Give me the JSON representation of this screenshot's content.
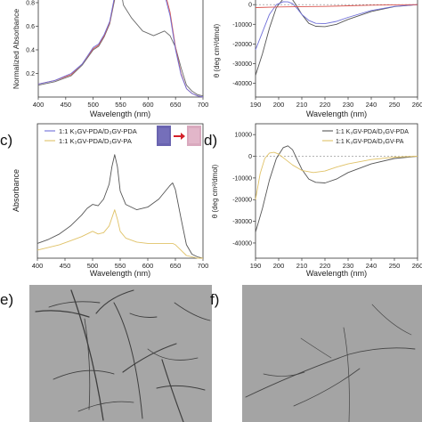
{
  "panel_labels": {
    "c": "c)",
    "d": "d)",
    "e": "e)",
    "f": "f)"
  },
  "chart_data": [
    {
      "id": "a",
      "type": "line",
      "xlabel": "Wavelength (nm)",
      "ylabel": "Normalized Absorbance",
      "xlim": [
        400,
        700
      ],
      "ylim": [
        0,
        0.83
      ],
      "xticks": [
        400,
        450,
        500,
        550,
        600,
        650,
        700
      ],
      "yticks": [
        0.2,
        0.4,
        0.6,
        0.8
      ],
      "ytick_labels": [
        "0.2",
        "0.4",
        "0.6",
        "0.8"
      ],
      "series": [
        {
          "color": "#6a6a6a",
          "x": [
            400,
            430,
            460,
            480,
            500,
            510,
            520,
            530,
            538,
            545,
            550,
            555,
            570,
            590,
            610,
            620,
            630,
            640,
            650,
            660,
            670,
            680,
            690,
            700
          ],
          "y": [
            0.1,
            0.13,
            0.18,
            0.27,
            0.4,
            0.43,
            0.51,
            0.62,
            0.8,
            0.95,
            0.92,
            0.78,
            0.67,
            0.56,
            0.52,
            0.54,
            0.56,
            0.52,
            0.42,
            0.25,
            0.1,
            0.05,
            0.02,
            0.01
          ]
        },
        {
          "color": "#d9544f",
          "x": [
            400,
            430,
            460,
            480,
            500,
            510,
            520,
            530,
            538,
            545,
            550,
            555,
            570,
            590,
            610,
            620,
            630,
            640,
            650,
            660,
            670,
            680,
            690,
            700
          ],
          "y": [
            0.11,
            0.14,
            0.19,
            0.28,
            0.41,
            0.44,
            0.52,
            0.63,
            0.82,
            0.98,
            0.97,
            0.9,
            0.86,
            0.86,
            0.9,
            0.95,
            0.9,
            0.72,
            0.42,
            0.2,
            0.07,
            0.03,
            0.01,
            0.0
          ]
        },
        {
          "color": "#6f6fd8",
          "x": [
            400,
            430,
            460,
            480,
            500,
            510,
            520,
            530,
            538,
            545,
            550,
            555,
            570,
            590,
            610,
            620,
            630,
            640,
            650,
            660,
            670,
            680,
            690,
            700
          ],
          "y": [
            0.11,
            0.14,
            0.2,
            0.28,
            0.42,
            0.45,
            0.53,
            0.64,
            0.83,
            0.99,
            0.98,
            0.91,
            0.84,
            0.84,
            0.88,
            0.93,
            0.87,
            0.69,
            0.4,
            0.19,
            0.07,
            0.03,
            0.01,
            0.0
          ]
        }
      ]
    },
    {
      "id": "b",
      "type": "line",
      "xlabel": "Wavelength (nm)",
      "ylabel": "θ (deg cm²/dmol)",
      "xlim": [
        190,
        260
      ],
      "ylim": [
        -47000,
        2800
      ],
      "xticks": [
        190,
        200,
        210,
        220,
        230,
        240,
        250,
        260
      ],
      "xtick_labels": [
        "190",
        "200",
        "210",
        "220",
        "230",
        "240",
        "250",
        "260"
      ],
      "yticks": [
        0,
        -10000,
        -20000,
        -30000,
        -40000
      ],
      "ytick_labels": [
        "0",
        "-10000",
        "-20000",
        "-30000",
        "-40000"
      ],
      "series": [
        {
          "color": "#555555",
          "x": [
            190,
            193,
            196,
            199,
            202,
            204,
            206,
            208,
            210,
            213,
            216,
            220,
            225,
            230,
            240,
            250,
            260
          ],
          "y": [
            -36000,
            -25000,
            -12000,
            -1500,
            3000,
            3600,
            2500,
            -1000,
            -5000,
            -9500,
            -11000,
            -11200,
            -10000,
            -7500,
            -3500,
            -1000,
            0
          ]
        },
        {
          "color": "#6f6fd8",
          "x": [
            190,
            193,
            196,
            199,
            202,
            204,
            206,
            208,
            210,
            213,
            216,
            220,
            225,
            230,
            240,
            250,
            260
          ],
          "y": [
            -23000,
            -14000,
            -5000,
            0,
            1500,
            1400,
            500,
            -2000,
            -5000,
            -8000,
            -9500,
            -9700,
            -8500,
            -6500,
            -3000,
            -900,
            0
          ]
        },
        {
          "color": "#d9544f",
          "x": [
            190,
            200,
            210,
            220,
            230,
            240,
            250,
            260
          ],
          "y": [
            -1500,
            -1200,
            -1000,
            -900,
            -600,
            -300,
            -100,
            0
          ]
        }
      ]
    },
    {
      "id": "c",
      "type": "line",
      "xlabel": "Wavelength (nm)",
      "ylabel": "Absorbance",
      "xlim": [
        400,
        700
      ],
      "ylim": [
        0,
        1.0
      ],
      "xticks": [
        400,
        450,
        500,
        550,
        600,
        650,
        700
      ],
      "xtick_labels": [
        "400",
        "450",
        "500",
        "550",
        "600",
        "650",
        "700"
      ],
      "legend": [
        "1:1 K₃GV-PDA/D₃GV-PDA",
        "1:1 K₃GV-PDA/D₃GV-PA"
      ],
      "series": [
        {
          "name": "1:1 K₃GV-PDA/D₃GV-PDA",
          "color": "#555555",
          "x": [
            400,
            420,
            440,
            460,
            480,
            490,
            500,
            510,
            520,
            530,
            535,
            540,
            545,
            550,
            560,
            580,
            600,
            620,
            640,
            645,
            650,
            660,
            670,
            680,
            690,
            700
          ],
          "y": [
            0.11,
            0.14,
            0.18,
            0.24,
            0.32,
            0.37,
            0.4,
            0.39,
            0.44,
            0.55,
            0.68,
            0.77,
            0.68,
            0.5,
            0.4,
            0.36,
            0.38,
            0.44,
            0.54,
            0.56,
            0.51,
            0.3,
            0.1,
            0.03,
            0.01,
            0.0
          ]
        },
        {
          "name": "1:1 K₃GV-PDA/D₃GV-PA",
          "color": "#e0c267",
          "x": [
            400,
            420,
            440,
            460,
            480,
            490,
            500,
            510,
            520,
            530,
            535,
            540,
            545,
            550,
            560,
            580,
            600,
            620,
            640,
            645,
            650,
            660,
            670,
            680,
            690,
            700
          ],
          "y": [
            0.06,
            0.08,
            0.1,
            0.13,
            0.16,
            0.18,
            0.2,
            0.18,
            0.19,
            0.24,
            0.3,
            0.36,
            0.29,
            0.2,
            0.15,
            0.12,
            0.11,
            0.11,
            0.11,
            0.11,
            0.1,
            0.06,
            0.02,
            0.01,
            0.0,
            0.0
          ]
        }
      ]
    },
    {
      "id": "d",
      "type": "line",
      "xlabel": "Wavelength (nm)",
      "ylabel": "θ (deg cm²/dmol)",
      "xlim": [
        190,
        260
      ],
      "ylim": [
        -47000,
        15000
      ],
      "xticks": [
        190,
        200,
        210,
        220,
        230,
        240,
        250,
        260
      ],
      "xtick_labels": [
        "190",
        "200",
        "210",
        "220",
        "230",
        "240",
        "250",
        "260"
      ],
      "yticks": [
        10000,
        0,
        -10000,
        -20000,
        -30000,
        -40000
      ],
      "ytick_labels": [
        "10000",
        "0",
        "-10000",
        "-20000",
        "-30000",
        "-40000"
      ],
      "legend": [
        "1:1 K₃GV-PDA/D₃GV-PDA",
        "1:1 K₃GV-PDA/D₃GV-PA"
      ],
      "series": [
        {
          "name": "1:1 K₃GV-PDA/D₃GV-PDA",
          "color": "#555555",
          "x": [
            190,
            193,
            196,
            199,
            202,
            204,
            206,
            208,
            210,
            213,
            216,
            220,
            225,
            230,
            240,
            250,
            260
          ],
          "y": [
            -35000,
            -24000,
            -11000,
            -1000,
            4000,
            4800,
            3000,
            -1500,
            -6000,
            -10500,
            -12000,
            -12300,
            -10500,
            -7500,
            -3500,
            -1000,
            0
          ]
        },
        {
          "name": "1:1 K₃GV-PDA/D₃GV-PA",
          "color": "#e0c267",
          "x": [
            190,
            192,
            194,
            196,
            198,
            200,
            203,
            206,
            210,
            215,
            220,
            225,
            230,
            240,
            250,
            260
          ],
          "y": [
            -20000,
            -8000,
            -1000,
            1500,
            1800,
            1000,
            -1500,
            -4000,
            -6500,
            -7500,
            -6800,
            -5000,
            -3500,
            -1500,
            -400,
            0
          ]
        }
      ]
    }
  ]
}
